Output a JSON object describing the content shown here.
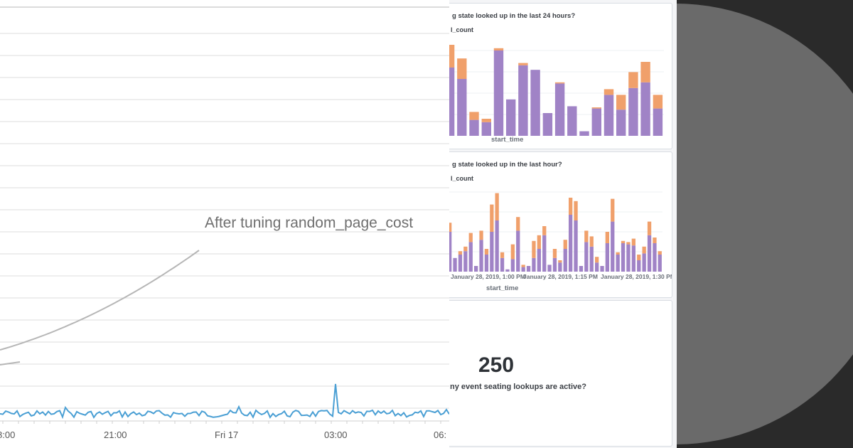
{
  "colors": {
    "purple": "#a083c6",
    "orange": "#f0a06b",
    "line_gray": "#b4b4b4",
    "line_blue": "#4a9fd4",
    "backdrop": "#2a2a2a",
    "circle": "#6a6a6a"
  },
  "left_chart": {
    "annotation": "After tuning random_page_cost",
    "x_ticks": [
      "8:00",
      "21:00",
      "Fri 17",
      "03:00",
      "06:"
    ]
  },
  "dashboard": {
    "card1": {
      "title": "g state looked up in the last 24 hours?",
      "legend": "l_count",
      "x_label": "start_time"
    },
    "card2": {
      "title": "g state looked up in the last hour?",
      "legend": "l_count",
      "x_label": "start_time",
      "x_ticks": [
        "January 28, 2019, 1:00 PM",
        "January 28, 2019, 1:15 PM",
        "January 28, 2019, 1:30 PM"
      ]
    },
    "card3": {
      "value": "250",
      "caption": "ny event seating lookups are active?"
    }
  },
  "chart_data": [
    {
      "type": "bar",
      "title": "g state looked up in the last 24 hours?",
      "xlabel": "start_time",
      "stacked": true,
      "series": [
        {
          "name": "l_count",
          "values": [
            6,
            5,
            1.4,
            1.2,
            7.5,
            3.2,
            6.2,
            5.8,
            2,
            4.6,
            2.6,
            0.4,
            2.4,
            3.6,
            2.3,
            4.2,
            4.7,
            2.4
          ]
        },
        {
          "name": "",
          "values": [
            2,
            1.8,
            0.7,
            0.3,
            0.2,
            0,
            0.2,
            0,
            0,
            0.1,
            0,
            0,
            0.1,
            0.5,
            1.3,
            1.4,
            1.8,
            1.2
          ]
        }
      ]
    },
    {
      "type": "bar",
      "title": "g state looked up in the last hour?",
      "xlabel": "start_time",
      "stacked": true,
      "x_ticks": [
        "January 28, 2019, 1:00 PM",
        "January 28, 2019, 1:15 PM",
        "January 28, 2019, 1:30 PM"
      ],
      "series": [
        {
          "name": "l_count",
          "values": [
            3.5,
            1.2,
            1.5,
            1.8,
            2.6,
            0.5,
            2.8,
            1.5,
            3.5,
            4.5,
            1.2,
            0.2,
            1.1,
            3.6,
            0.4,
            0.5,
            1.2,
            2.0,
            3.2,
            0.6,
            1.2,
            0.8,
            2.0,
            5.0,
            4.5,
            0.5,
            2.6,
            2.2,
            0.8,
            0.5,
            2.5,
            4.4,
            1.5,
            2.5,
            2.4,
            2.3,
            1.0,
            1.6,
            3.2,
            2.5,
            1.5
          ]
        },
        {
          "name": "",
          "values": [
            0.8,
            0,
            0.3,
            0.4,
            0.8,
            0,
            0.8,
            0.5,
            2.4,
            2.4,
            0.5,
            0,
            1.3,
            1.2,
            0.2,
            0,
            1.5,
            1.2,
            0.8,
            0,
            0.8,
            0.2,
            0.8,
            1.5,
            1.7,
            0,
            1.0,
            0.9,
            0.5,
            0,
            1.0,
            2.0,
            0.2,
            0.2,
            0.2,
            0.6,
            0.5,
            0.6,
            1.2,
            0.5,
            0.3
          ]
        }
      ]
    },
    {
      "type": "line",
      "title": "",
      "x_ticks": [
        "8:00",
        "21:00",
        "Fri 17",
        "03:00",
        "06:"
      ]
    }
  ]
}
